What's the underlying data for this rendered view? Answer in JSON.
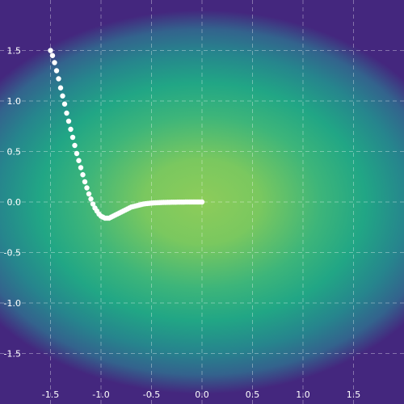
{
  "chart_data": {
    "type": "scatter",
    "title": "",
    "xlabel": "",
    "ylabel": "",
    "xlim": [
      -2.0,
      2.0
    ],
    "ylim": [
      -2.0,
      2.0
    ],
    "grid": true,
    "legend": "none",
    "background": {
      "kind": "heatmap",
      "description_colormap": "viridis",
      "center": [
        0.0,
        0.0
      ],
      "colors": [
        "#44277e",
        "#3a4f8c",
        "#2a798e",
        "#21a685",
        "#55c46a",
        "#8dcc5a"
      ]
    },
    "x_ticks": [
      "-1.5",
      "-1.0",
      "-0.5",
      "0.0",
      "0.5",
      "1.0",
      "1.5"
    ],
    "x_tick_values": [
      -1.5,
      -1.0,
      -0.5,
      0.0,
      0.5,
      1.0,
      1.5
    ],
    "y_ticks": [
      "1.5",
      "1.0",
      "0.5",
      "0.0",
      "-0.5",
      "-1.0",
      "-1.5"
    ],
    "y_tick_values": [
      1.5,
      1.0,
      0.5,
      0.0,
      -0.5,
      -1.0,
      -1.5
    ],
    "series": [
      {
        "color": "#ffffff",
        "points": [
          [
            -1.5,
            1.5
          ],
          [
            -1.48,
            1.45
          ],
          [
            -1.46,
            1.38
          ],
          [
            -1.44,
            1.3
          ],
          [
            -1.42,
            1.22
          ],
          [
            -1.4,
            1.13
          ],
          [
            -1.38,
            1.05
          ],
          [
            -1.36,
            0.97
          ],
          [
            -1.34,
            0.88
          ],
          [
            -1.32,
            0.8
          ],
          [
            -1.3,
            0.72
          ],
          [
            -1.28,
            0.64
          ],
          [
            -1.26,
            0.56
          ],
          [
            -1.24,
            0.48
          ],
          [
            -1.22,
            0.41
          ],
          [
            -1.2,
            0.34
          ],
          [
            -1.18,
            0.27
          ],
          [
            -1.16,
            0.2
          ],
          [
            -1.14,
            0.14
          ],
          [
            -1.12,
            0.08
          ],
          [
            -1.1,
            0.03
          ],
          [
            -1.08,
            -0.02
          ],
          [
            -1.06,
            -0.06
          ],
          [
            -1.04,
            -0.09
          ],
          [
            -1.02,
            -0.12
          ],
          [
            -1.0,
            -0.14
          ],
          [
            -0.98,
            -0.15
          ],
          [
            -0.96,
            -0.16
          ],
          [
            -0.94,
            -0.16
          ],
          [
            -0.92,
            -0.16
          ],
          [
            -0.9,
            -0.15
          ],
          [
            -0.88,
            -0.14
          ],
          [
            -0.86,
            -0.13
          ],
          [
            -0.84,
            -0.12
          ],
          [
            -0.82,
            -0.11
          ],
          [
            -0.8,
            -0.1
          ],
          [
            -0.78,
            -0.09
          ],
          [
            -0.76,
            -0.08
          ],
          [
            -0.74,
            -0.07
          ],
          [
            -0.72,
            -0.06
          ],
          [
            -0.7,
            -0.05
          ],
          [
            -0.68,
            -0.045
          ],
          [
            -0.66,
            -0.04
          ],
          [
            -0.64,
            -0.035
          ],
          [
            -0.62,
            -0.03
          ],
          [
            -0.6,
            -0.025
          ],
          [
            -0.58,
            -0.02
          ],
          [
            -0.56,
            -0.017
          ],
          [
            -0.54,
            -0.015
          ],
          [
            -0.52,
            -0.013
          ],
          [
            -0.5,
            -0.011
          ],
          [
            -0.48,
            -0.009
          ],
          [
            -0.46,
            -0.008
          ],
          [
            -0.44,
            -0.007
          ],
          [
            -0.42,
            -0.006
          ],
          [
            -0.4,
            -0.005
          ],
          [
            -0.38,
            -0.004
          ],
          [
            -0.36,
            -0.004
          ],
          [
            -0.34,
            -0.003
          ],
          [
            -0.32,
            -0.003
          ],
          [
            -0.3,
            -0.002
          ],
          [
            -0.28,
            -0.002
          ],
          [
            -0.26,
            -0.002
          ],
          [
            -0.24,
            -0.001
          ],
          [
            -0.22,
            -0.001
          ],
          [
            -0.2,
            -0.001
          ],
          [
            -0.18,
            -0.001
          ],
          [
            -0.16,
            0.0
          ],
          [
            -0.14,
            0.0
          ],
          [
            -0.12,
            0.0
          ],
          [
            -0.1,
            0.0
          ],
          [
            -0.08,
            0.0
          ],
          [
            -0.06,
            0.0
          ],
          [
            -0.04,
            0.0
          ],
          [
            -0.02,
            0.0
          ],
          [
            0.0,
            0.0
          ]
        ]
      }
    ]
  }
}
